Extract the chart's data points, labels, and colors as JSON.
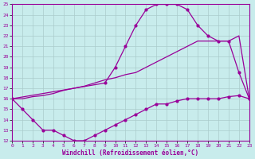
{
  "xlabel": "Windchill (Refroidissement éolien,°C)",
  "bg_color": "#c8ecec",
  "line_color": "#990099",
  "grid_color": "#aacccc",
  "xmin": 0,
  "xmax": 23,
  "ymin": 12,
  "ymax": 25,
  "xticks": [
    0,
    1,
    2,
    3,
    4,
    5,
    6,
    7,
    8,
    9,
    10,
    11,
    12,
    13,
    14,
    15,
    16,
    17,
    18,
    19,
    20,
    21,
    22,
    23
  ],
  "yticks": [
    12,
    13,
    14,
    15,
    16,
    17,
    18,
    19,
    20,
    21,
    22,
    23,
    24,
    25
  ],
  "curve_bell_x": [
    0,
    9,
    10,
    11,
    12,
    13,
    14,
    15,
    16,
    17,
    18,
    19,
    20,
    21,
    22,
    23
  ],
  "curve_bell_y": [
    16,
    17.5,
    19,
    21,
    23,
    24.5,
    25,
    25,
    25,
    24.5,
    23,
    22,
    21.5,
    21.5,
    18.5,
    16
  ],
  "curve_diag_x": [
    0,
    1,
    2,
    3,
    4,
    5,
    6,
    7,
    8,
    9,
    10,
    11,
    12,
    13,
    14,
    15,
    16,
    17,
    18,
    19,
    20,
    21,
    22,
    23
  ],
  "curve_diag_y": [
    16,
    16,
    16.2,
    16.3,
    16.5,
    16.8,
    17.0,
    17.2,
    17.5,
    17.8,
    18.0,
    18.3,
    18.5,
    19.0,
    19.5,
    20.0,
    20.5,
    21.0,
    21.5,
    21.5,
    21.5,
    21.5,
    22.0,
    16
  ],
  "curve_low_x": [
    0,
    1,
    2,
    3,
    4,
    5,
    6,
    7,
    8,
    9,
    10,
    11,
    12,
    13,
    14,
    15,
    16,
    17,
    18,
    19,
    20,
    21,
    22,
    23
  ],
  "curve_low_y": [
    16,
    15,
    14,
    13,
    13,
    12.5,
    12,
    12,
    12.5,
    13,
    13.5,
    14,
    14.5,
    15,
    15.5,
    15.5,
    15.8,
    16,
    16,
    16,
    16,
    16.2,
    16.3,
    16
  ]
}
